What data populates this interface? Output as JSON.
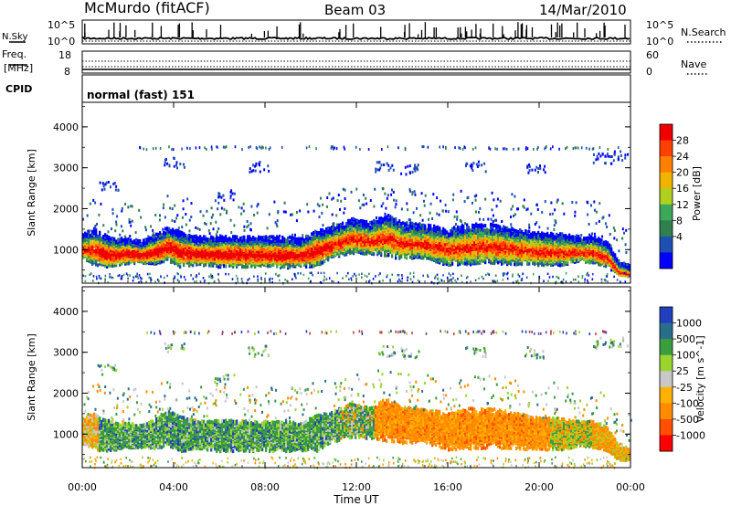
{
  "header": {
    "station": "McMurdo (fitACF)",
    "beam": "Beam 03",
    "date": "14/Mar/2010"
  },
  "noise_panel": {
    "left_label": "N.Sky",
    "right_label": "N.Search",
    "tick_top": "10^5",
    "tick_bottom": "10^0"
  },
  "freq_panel": {
    "left_label_1": "Freq.",
    "left_label_2": "[MHz]",
    "right_label": "Nave",
    "left_ticks": [
      "18",
      "8"
    ],
    "right_ticks": [
      "60",
      "0"
    ]
  },
  "cpid": {
    "label": "CPID",
    "value": "normal (fast) 151"
  },
  "colors": {
    "power_scale": [
      "#0000ff",
      "#1e50b4",
      "#2f7f4f",
      "#3da85a",
      "#b0d020",
      "#f0b400",
      "#ff8000",
      "#ff4000",
      "#ee0000"
    ],
    "velocity_scale": [
      "#ff0000",
      "#ff5000",
      "#ff8c00",
      "#ffb000",
      "#c8c8c8",
      "#9ad42e",
      "#3a9e3e",
      "#2a6e8e",
      "#2040c0"
    ]
  },
  "chart_data": [
    {
      "type": "heatmap",
      "panel": "power",
      "ylabel": "Slant Range [km]",
      "yticks": [
        "4000",
        "3000",
        "2000",
        "1000"
      ],
      "ylim": [
        180,
        4600
      ],
      "xlim": [
        0,
        24
      ],
      "colorbar": {
        "label": "Power [dB]",
        "ticks": [
          "28",
          "24",
          "20",
          "16",
          "12",
          "8",
          "4"
        ]
      }
    },
    {
      "type": "heatmap",
      "panel": "velocity",
      "ylabel": "Slant Range [km]",
      "yticks": [
        "4000",
        "3000",
        "2000",
        "1000"
      ],
      "ylim": [
        180,
        4600
      ],
      "xlim": [
        0,
        24
      ],
      "xticks": [
        "00:00",
        "04:00",
        "08:00",
        "12:00",
        "16:00",
        "20:00",
        "00:00"
      ],
      "xlabel": "Time UT",
      "colorbar": {
        "label": "Velocity [m s^-1]",
        "ticks": [
          "1000",
          "500",
          "100",
          "25",
          "-25",
          "-100",
          "-500",
          "-1000"
        ]
      }
    }
  ]
}
